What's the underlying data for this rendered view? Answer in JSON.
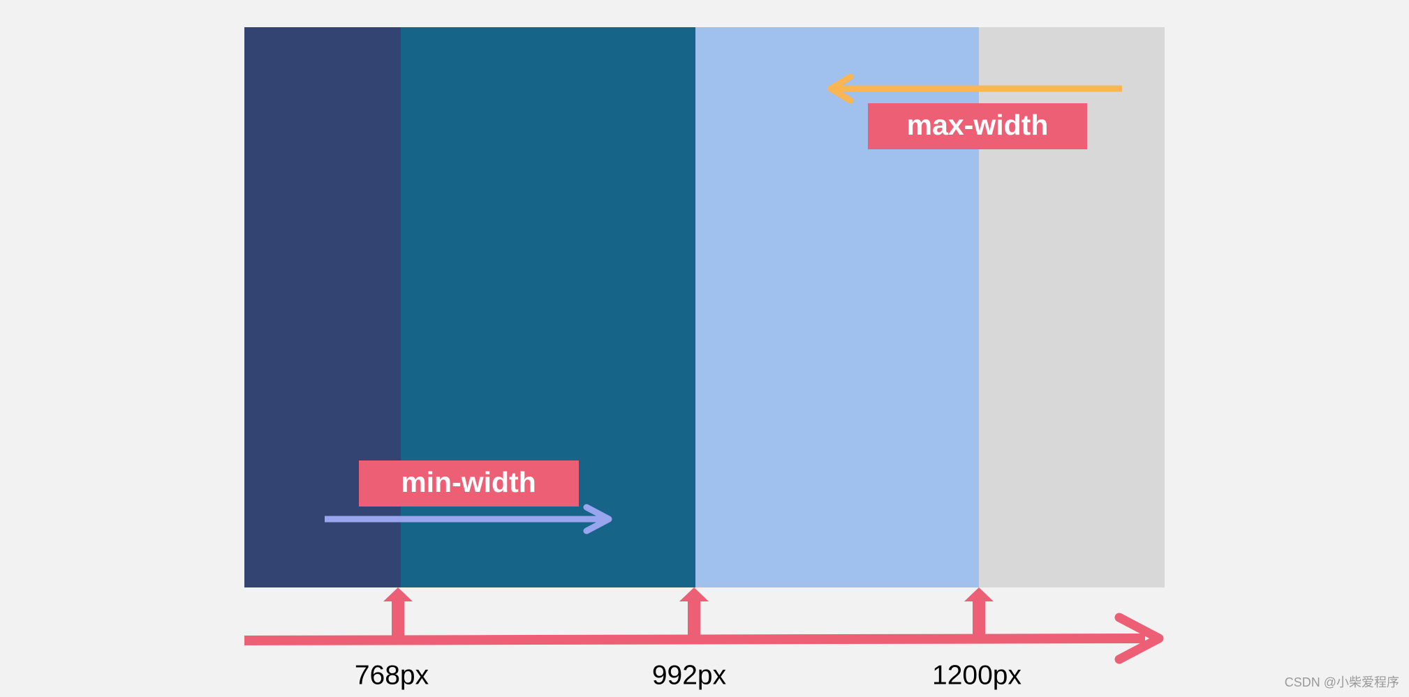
{
  "annotations": {
    "max_label": "max-width",
    "min_label": "min-width"
  },
  "breakpoints": [
    "768px",
    "992px",
    "1200px"
  ],
  "watermark": "CSDN @小柴爱程序"
}
